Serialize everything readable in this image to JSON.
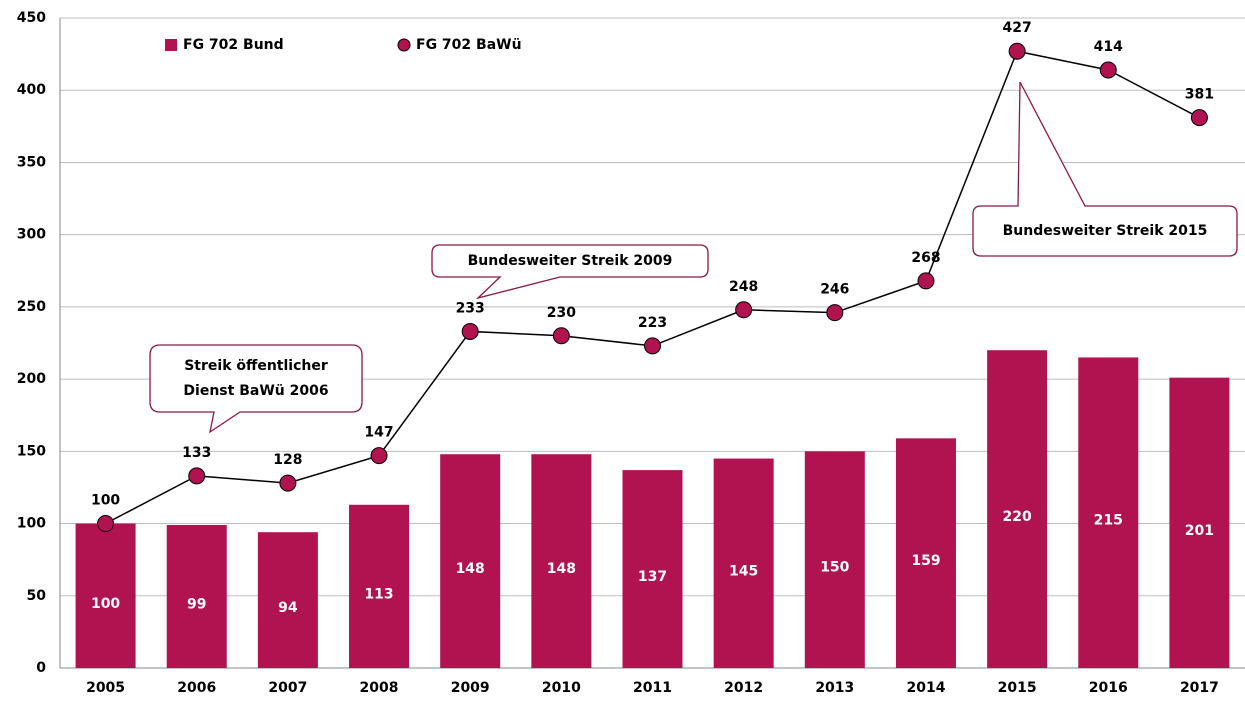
{
  "chart_data": {
    "type": "combo",
    "categories": [
      "2005",
      "2006",
      "2007",
      "2008",
      "2009",
      "2010",
      "2011",
      "2012",
      "2013",
      "2014",
      "2015",
      "2016",
      "2017"
    ],
    "series": [
      {
        "name": "FG 702 Bund",
        "type": "bar",
        "color": "#b0134f",
        "values": [
          100,
          99,
          94,
          113,
          148,
          148,
          137,
          145,
          150,
          159,
          220,
          215,
          201
        ]
      },
      {
        "name": "FG 702 BaWü",
        "type": "line",
        "color": "#b0134f",
        "values": [
          100,
          133,
          128,
          147,
          233,
          230,
          223,
          248,
          246,
          268,
          427,
          414,
          381
        ]
      }
    ],
    "ylim": [
      0,
      450
    ],
    "yticks": [
      0,
      50,
      100,
      150,
      200,
      250,
      300,
      350,
      400,
      450
    ],
    "grid": true,
    "annotations": [
      {
        "text": [
          "Streik öffentlicher",
          "Dienst BaWü 2006"
        ]
      },
      {
        "text": [
          "Bundesweiter Streik 2009"
        ]
      },
      {
        "text": [
          "Bundesweiter Streik 2015"
        ]
      }
    ]
  }
}
